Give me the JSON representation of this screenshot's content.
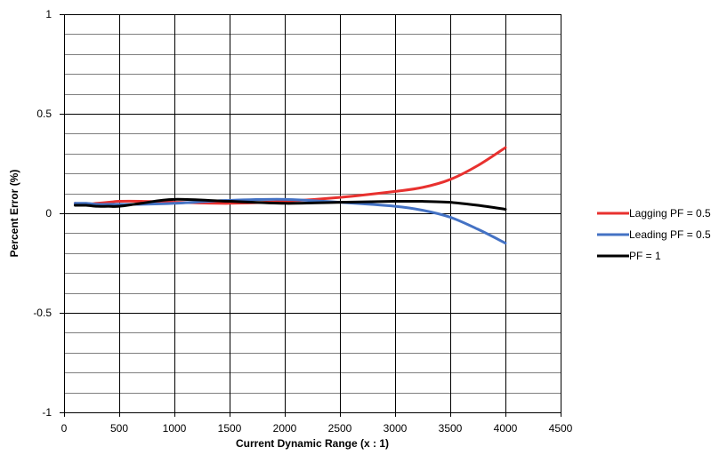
{
  "chart_data": {
    "type": "line",
    "xlabel": "Current Dynamic Range (x : 1)",
    "ylabel": "Percent Error (%)",
    "xlim": [
      0,
      4500
    ],
    "ylim": [
      -1,
      1
    ],
    "x_major_step": 500,
    "y_major_step": 0.5,
    "y_minor_step": 0.1,
    "grid": true,
    "legend_position": "right",
    "x": [
      100,
      200,
      300,
      400,
      500,
      700,
      1000,
      1500,
      2000,
      2500,
      3000,
      3250,
      3500,
      3750,
      4000
    ],
    "series": [
      {
        "name": "Lagging PF = 0.5",
        "color": "#e8312f",
        "values": [
          0.05,
          0.045,
          0.05,
          0.055,
          0.06,
          0.06,
          0.055,
          0.05,
          0.06,
          0.08,
          0.11,
          0.13,
          0.17,
          0.24,
          0.33
        ]
      },
      {
        "name": "Leading PF = 0.5",
        "color": "#4472c4",
        "values": [
          0.05,
          0.05,
          0.045,
          0.045,
          0.045,
          0.045,
          0.05,
          0.065,
          0.07,
          0.055,
          0.035,
          0.015,
          -0.02,
          -0.08,
          -0.15
        ]
      },
      {
        "name": "PF = 1",
        "color": "#000000",
        "values": [
          0.04,
          0.04,
          0.035,
          0.035,
          0.035,
          0.05,
          0.07,
          0.06,
          0.05,
          0.055,
          0.06,
          0.06,
          0.055,
          0.04,
          0.02
        ]
      }
    ]
  }
}
